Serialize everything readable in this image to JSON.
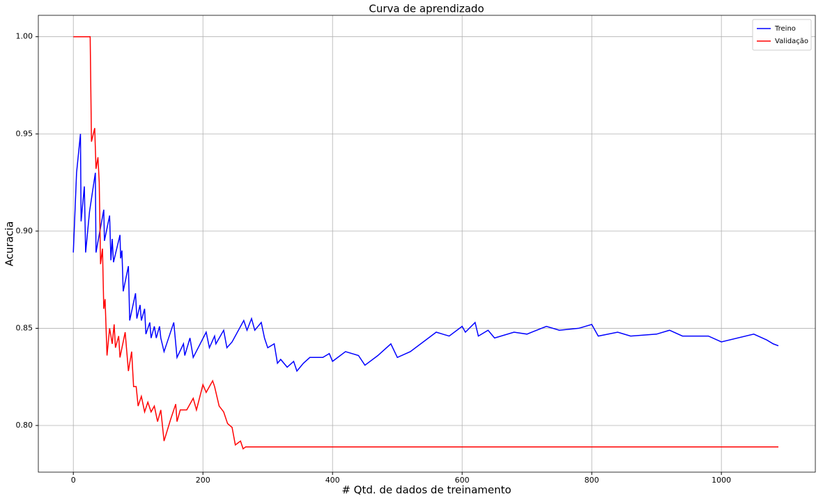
{
  "chart_data": {
    "type": "line",
    "title": "Curva de aprendizado",
    "xlabel": "# Qtd. de dados de treinamento",
    "ylabel": "Acuracia",
    "xlim": [
      -54,
      1145
    ],
    "ylim": [
      0.776,
      1.011
    ],
    "xticks": [
      0,
      200,
      400,
      600,
      800,
      1000
    ],
    "yticks": [
      {
        "value": 0.8,
        "label": "0.80"
      },
      {
        "value": 0.85,
        "label": "0.85"
      },
      {
        "value": 0.9,
        "label": "0.90"
      },
      {
        "value": 0.95,
        "label": "0.95"
      },
      {
        "value": 1.0,
        "label": "1.00"
      }
    ],
    "grid": true,
    "legend": "upper right",
    "series": [
      {
        "name": "Treino",
        "color": "#0000ff",
        "x": [
          0,
          5,
          11,
          12,
          17,
          19,
          25,
          34,
          35,
          47,
          48,
          56,
          58,
          60,
          62,
          72,
          73,
          75,
          77,
          85,
          87,
          96,
          98,
          103,
          105,
          110,
          112,
          118,
          120,
          125,
          128,
          133,
          135,
          140,
          155,
          160,
          170,
          172,
          180,
          185,
          205,
          210,
          218,
          220,
          232,
          237,
          245,
          263,
          268,
          275,
          280,
          290,
          295,
          300,
          310,
          315,
          320,
          330,
          340,
          345,
          355,
          365,
          385,
          395,
          400,
          420,
          440,
          450,
          470,
          490,
          500,
          520,
          560,
          580,
          600,
          605,
          620,
          625,
          640,
          650,
          680,
          700,
          730,
          750,
          780,
          800,
          810,
          840,
          860,
          900,
          920,
          940,
          980,
          1000,
          1050,
          1070,
          1080,
          1088
        ],
        "values": [
          0.889,
          0.93,
          0.95,
          0.905,
          0.923,
          0.889,
          0.91,
          0.93,
          0.889,
          0.911,
          0.895,
          0.908,
          0.885,
          0.896,
          0.884,
          0.898,
          0.886,
          0.89,
          0.869,
          0.882,
          0.854,
          0.868,
          0.855,
          0.862,
          0.854,
          0.86,
          0.847,
          0.853,
          0.845,
          0.851,
          0.845,
          0.851,
          0.845,
          0.838,
          0.853,
          0.835,
          0.842,
          0.836,
          0.845,
          0.835,
          0.848,
          0.84,
          0.846,
          0.842,
          0.849,
          0.84,
          0.843,
          0.854,
          0.849,
          0.855,
          0.849,
          0.853,
          0.845,
          0.84,
          0.842,
          0.832,
          0.834,
          0.83,
          0.833,
          0.828,
          0.832,
          0.835,
          0.835,
          0.837,
          0.833,
          0.838,
          0.836,
          0.831,
          0.836,
          0.842,
          0.835,
          0.838,
          0.848,
          0.846,
          0.851,
          0.848,
          0.853,
          0.846,
          0.849,
          0.845,
          0.848,
          0.847,
          0.851,
          0.849,
          0.85,
          0.852,
          0.846,
          0.848,
          0.846,
          0.847,
          0.849,
          0.846,
          0.846,
          0.843,
          0.847,
          0.844,
          0.842,
          0.841
        ]
      },
      {
        "name": "Validação",
        "color": "#ff0000",
        "x": [
          0,
          26,
          28,
          33,
          35,
          38,
          40,
          42,
          45,
          47,
          49,
          52,
          56,
          60,
          63,
          65,
          70,
          72,
          80,
          85,
          90,
          93,
          97,
          100,
          105,
          110,
          115,
          120,
          125,
          130,
          135,
          140,
          150,
          158,
          160,
          165,
          175,
          185,
          190,
          200,
          205,
          215,
          218,
          225,
          232,
          238,
          245,
          250,
          258,
          262,
          266,
          1088
        ],
        "values": [
          1.0,
          1.0,
          0.946,
          0.953,
          0.932,
          0.938,
          0.925,
          0.883,
          0.891,
          0.86,
          0.865,
          0.836,
          0.85,
          0.842,
          0.852,
          0.84,
          0.846,
          0.835,
          0.848,
          0.828,
          0.838,
          0.82,
          0.82,
          0.81,
          0.815,
          0.807,
          0.812,
          0.807,
          0.81,
          0.802,
          0.808,
          0.792,
          0.803,
          0.811,
          0.802,
          0.808,
          0.808,
          0.814,
          0.808,
          0.821,
          0.817,
          0.823,
          0.82,
          0.81,
          0.807,
          0.801,
          0.799,
          0.79,
          0.792,
          0.788,
          0.789,
          0.789
        ]
      }
    ]
  }
}
